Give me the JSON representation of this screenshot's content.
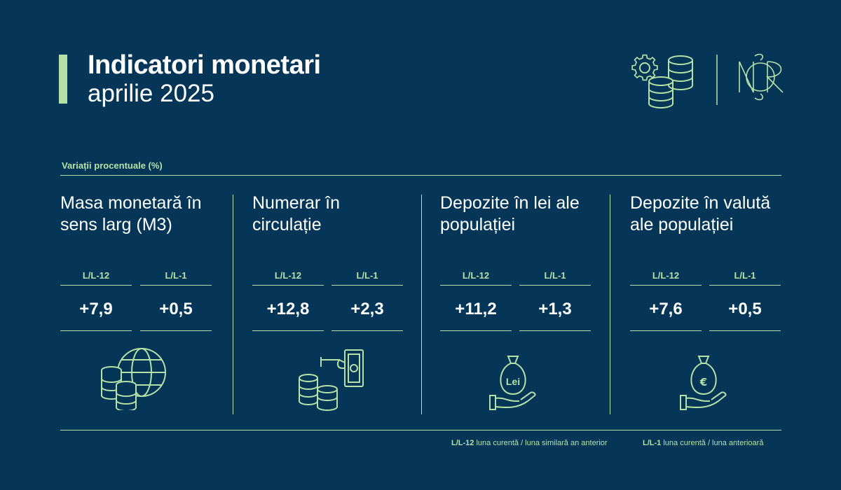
{
  "header": {
    "title": "Indicatori monetari",
    "subtitle": "aprilie 2025"
  },
  "section_label": "Variații procentuale (%)",
  "sub_labels": {
    "yoy": "L/L-12",
    "mom": "L/L-1"
  },
  "indicators": [
    {
      "title": "Masa monetară în sens larg (M3)",
      "yoy": "+7,9",
      "mom": "+0,5",
      "icon": "coins-globe-icon"
    },
    {
      "title": "Numerar în circulație",
      "yoy": "+12,8",
      "mom": "+2,3",
      "icon": "coins-cash-hand-icon"
    },
    {
      "title": "Depozite în lei ale populației",
      "yoy": "+11,2",
      "mom": "+1,3",
      "icon": "lei-moneybag-hand-icon",
      "bag_label": "Lei"
    },
    {
      "title": "Depozite în valută ale populației",
      "yoy": "+7,6",
      "mom": "+0,5",
      "icon": "euro-moneybag-hand-icon",
      "bag_label": "€"
    }
  ],
  "legend": {
    "yoy_key": "L/L-12",
    "yoy_desc": "luna curentă / luna similară an anterior",
    "mom_key": "L/L-1",
    "mom_desc": "luna curentă / luna anterioară"
  },
  "colors": {
    "background": "#053658",
    "accent": "#b6e1a6",
    "text": "#ffffff"
  },
  "logo_text": "BNR"
}
